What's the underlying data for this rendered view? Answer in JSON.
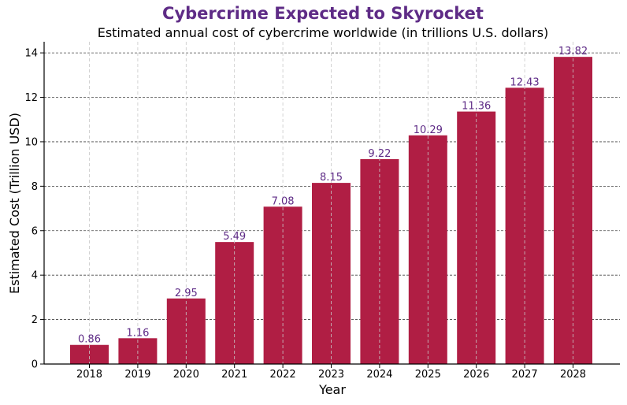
{
  "chart_data": {
    "type": "bar",
    "title": "Cybercrime Expected to Skyrocket",
    "subtitle": "Estimated annual cost of cybercrime worldwide (in trillions U.S. dollars)",
    "xlabel": "Year",
    "ylabel": "Estimated Cost (Trillion USD)",
    "categories": [
      "2018",
      "2019",
      "2020",
      "2021",
      "2022",
      "2023",
      "2024",
      "2025",
      "2026",
      "2027",
      "2028"
    ],
    "values": [
      0.86,
      1.16,
      2.95,
      5.49,
      7.08,
      8.15,
      9.22,
      10.29,
      11.36,
      12.43,
      13.82
    ],
    "data_labels": [
      "0.86",
      "1.16",
      "2.95",
      "5.49",
      "7.08",
      "8.15",
      "9.22",
      "10.29",
      "11.36",
      "12.43",
      "13.82"
    ],
    "yticks": [
      "0",
      "2",
      "4",
      "6",
      "8",
      "10",
      "12",
      "14"
    ],
    "ylim": [
      0,
      14.5
    ],
    "grid": true,
    "colors": {
      "bar": "#b01e44",
      "title": "#5e2b86",
      "label": "#5e2b86"
    }
  }
}
